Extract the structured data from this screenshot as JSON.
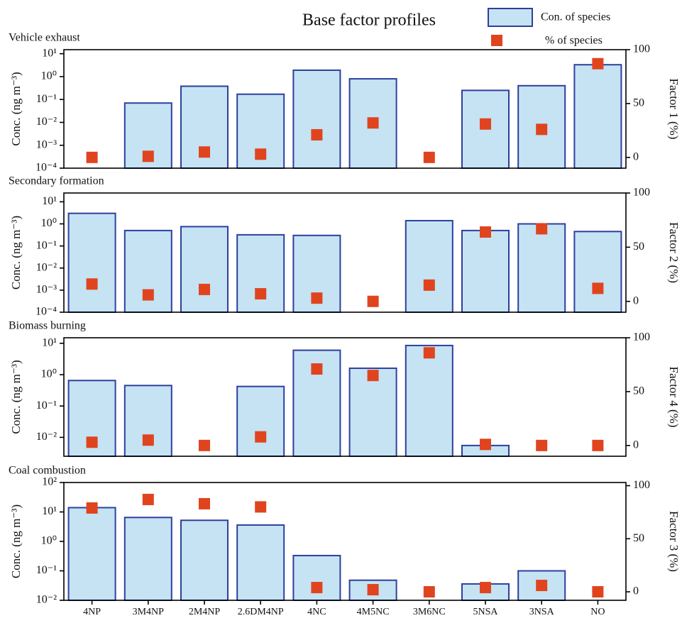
{
  "chart_data": [
    {
      "type": "bar",
      "title": "Base factor profiles",
      "subtitle": "Vehicle exhaust",
      "ylabel": "Conc. (ng m⁻³)",
      "y2label": "Factor 1 (%)",
      "log_y": true,
      "ylim": [
        0.0001,
        15
      ],
      "yticks": [
        {
          "value": 10,
          "label": "10¹"
        },
        {
          "value": 1,
          "label": "10⁰"
        },
        {
          "value": 0.1,
          "label": "10⁻¹"
        },
        {
          "value": 0.01,
          "label": "10⁻²"
        },
        {
          "value": 0.001,
          "label": "10⁻³"
        },
        {
          "value": 0.0001,
          "label": "10⁻⁴"
        }
      ],
      "y2lim": [
        -10,
        100
      ],
      "y2ticks": [
        0,
        50,
        100
      ],
      "series": [
        {
          "name": "Con. of species",
          "color": "#c5e3f3",
          "values": [
            null,
            0.07,
            0.38,
            0.17,
            1.9,
            0.8,
            null,
            0.25,
            0.4,
            3.3
          ]
        },
        {
          "name": "% of species",
          "color": "#e0441f",
          "axis": "y2",
          "values": [
            0,
            1,
            5,
            3,
            21,
            32,
            0,
            31,
            26,
            87
          ]
        }
      ]
    },
    {
      "type": "bar",
      "subtitle": "Secondary formation",
      "ylabel": "Conc. (ng m⁻³)",
      "y2label": "Factor 2 (%)",
      "log_y": true,
      "ylim": [
        0.0001,
        25
      ],
      "yticks": [
        {
          "value": 10,
          "label": "10¹"
        },
        {
          "value": 1,
          "label": "10⁰"
        },
        {
          "value": 0.1,
          "label": "10⁻¹"
        },
        {
          "value": 0.01,
          "label": "10⁻²"
        },
        {
          "value": 0.001,
          "label": "10⁻³"
        },
        {
          "value": 0.0001,
          "label": "10⁻⁴"
        }
      ],
      "y2lim": [
        -10,
        100
      ],
      "y2ticks": [
        0,
        50,
        100
      ],
      "series": [
        {
          "color": "#c5e3f3",
          "values": [
            3.0,
            0.5,
            0.75,
            0.32,
            0.3,
            null,
            1.4,
            0.5,
            1.0,
            0.45
          ]
        },
        {
          "color": "#e0441f",
          "axis": "y2",
          "values": [
            16,
            6,
            11,
            7,
            3,
            0,
            15,
            64,
            67,
            12
          ]
        }
      ]
    },
    {
      "type": "bar",
      "subtitle": "Biomass burning",
      "ylabel": "Conc. (ng m⁻³)",
      "y2label": "Factor 4 (%)",
      "log_y": true,
      "ylim": [
        0.0025,
        15
      ],
      "yticks": [
        {
          "value": 10,
          "label": "10¹"
        },
        {
          "value": 1,
          "label": "10⁰"
        },
        {
          "value": 0.1,
          "label": "10⁻¹"
        },
        {
          "value": 0.01,
          "label": "10⁻²"
        }
      ],
      "y2lim": [
        -10,
        100
      ],
      "y2ticks": [
        0,
        50,
        100
      ],
      "series": [
        {
          "color": "#c5e3f3",
          "values": [
            0.65,
            0.45,
            null,
            0.42,
            6,
            1.6,
            8.5,
            0.0055,
            null,
            null
          ]
        },
        {
          "color": "#e0441f",
          "axis": "y2",
          "values": [
            3,
            5,
            0,
            8,
            71,
            65,
            86,
            1,
            0,
            0
          ]
        }
      ]
    },
    {
      "type": "bar",
      "subtitle": "Coal combustion",
      "ylabel": "Conc. (ng m⁻³)",
      "y2label": "Factor 3 (%)",
      "log_y": true,
      "categories": [
        "4NP",
        "3M4NP",
        "2M4NP",
        "2.6DM4NP",
        "4NC",
        "4M5NC",
        "3M6NC",
        "5NSA",
        "3NSA",
        "NO"
      ],
      "ylim": [
        0.01,
        100
      ],
      "yticks": [
        {
          "value": 100,
          "label": "10²"
        },
        {
          "value": 10,
          "label": "10¹"
        },
        {
          "value": 1,
          "label": "10⁰"
        },
        {
          "value": 0.1,
          "label": "10⁻¹"
        },
        {
          "value": 0.01,
          "label": "10⁻²"
        }
      ],
      "y2lim": [
        -8,
        103
      ],
      "y2ticks": [
        0,
        50,
        100
      ],
      "series": [
        {
          "color": "#c5e3f3",
          "values": [
            14,
            6.5,
            5.2,
            3.6,
            0.33,
            0.048,
            null,
            0.036,
            0.1,
            null
          ]
        },
        {
          "color": "#e0441f",
          "axis": "y2",
          "values": [
            79,
            87,
            83,
            80,
            4,
            2,
            0,
            4,
            6,
            0
          ]
        }
      ]
    }
  ]
}
